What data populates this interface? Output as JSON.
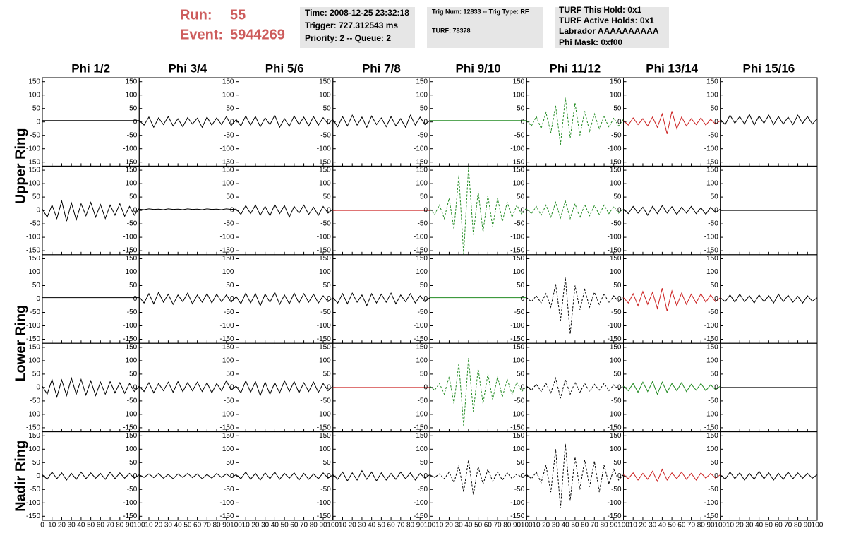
{
  "header": {
    "run_label": "Run:",
    "run": "55",
    "event_label": "Event:",
    "event": "5944269"
  },
  "info_boxes": [
    [
      "Time: 2008-12-25 23:32:18",
      "Trigger: 727.312543 ms",
      "Priority: 2 -- Queue: 2"
    ],
    [
      "Trig Num: 12833 -- Trig Type: RF",
      "TURF: 78378"
    ],
    [
      "TURF This Hold: 0x1",
      "TURF Active Holds: 0x1",
      "Labrador AAAAAAAAAA",
      "Phi Mask: 0xf00"
    ]
  ],
  "chart_data": {
    "type": "line",
    "columns": [
      "Phi 1/2",
      "Phi 3/4",
      "Phi 5/6",
      "Phi 7/8",
      "Phi 9/10",
      "Phi 11/12",
      "Phi 13/14",
      "Phi 15/16"
    ],
    "ring_labels": [
      "Upper Ring",
      "Lower Ring",
      "Nadir Ring"
    ],
    "x": [
      0,
      5,
      10,
      15,
      20,
      25,
      30,
      35,
      40,
      45,
      50,
      55,
      60,
      65,
      70,
      75,
      80,
      85,
      90,
      95,
      100
    ],
    "xlim": [
      0,
      100
    ],
    "xticks": [
      0,
      10,
      20,
      30,
      40,
      50,
      60,
      70,
      80,
      90,
      100
    ],
    "ylim": [
      -165,
      165
    ],
    "yticks": [
      -150,
      -100,
      -50,
      0,
      50,
      100,
      150
    ],
    "panels": [
      [
        {
          "color": "#000000",
          "dashed": false,
          "values": [
            5,
            5,
            5,
            5,
            5,
            5,
            5,
            5,
            5,
            5,
            5,
            5,
            5,
            5,
            5,
            5,
            5,
            5,
            5,
            5,
            5
          ]
        },
        {
          "color": "#000000",
          "dashed": false,
          "values": [
            5,
            -12,
            18,
            -20,
            15,
            -10,
            20,
            -15,
            12,
            -18,
            16,
            -8,
            14,
            -20,
            18,
            -12,
            15,
            -10,
            20,
            -14,
            8
          ]
        },
        {
          "color": "#000000",
          "dashed": false,
          "values": [
            10,
            -15,
            22,
            -12,
            20,
            -18,
            15,
            -10,
            25,
            -20,
            12,
            -16,
            22,
            -10,
            18,
            -15,
            20,
            -12,
            16,
            -8,
            10
          ]
        },
        {
          "color": "#000000",
          "dashed": false,
          "values": [
            8,
            -18,
            20,
            -15,
            25,
            -12,
            18,
            -20,
            22,
            -10,
            15,
            -18,
            20,
            -15,
            12,
            -20,
            25,
            -12,
            18,
            -10,
            5
          ]
        },
        {
          "color": "#228b22",
          "dashed": false,
          "values": [
            5,
            5,
            5,
            5,
            5,
            5,
            5,
            5,
            5,
            5,
            5,
            5,
            5,
            5,
            5,
            5,
            5,
            5,
            5,
            5,
            5
          ]
        },
        {
          "color": "#228b22",
          "dashed": true,
          "values": [
            5,
            -15,
            20,
            -25,
            35,
            -40,
            60,
            -85,
            90,
            -60,
            70,
            -50,
            40,
            -35,
            30,
            -25,
            20,
            -20,
            15,
            -15,
            10
          ]
        },
        {
          "color": "#cc2222",
          "dashed": false,
          "values": [
            5,
            -12,
            15,
            -10,
            12,
            -15,
            18,
            -20,
            30,
            -45,
            40,
            -25,
            18,
            -15,
            12,
            -10,
            15,
            -12,
            10,
            -8,
            5
          ]
        },
        {
          "color": "#000000",
          "dashed": false,
          "values": [
            10,
            -10,
            25,
            -5,
            20,
            -8,
            28,
            -12,
            22,
            -5,
            25,
            -10,
            20,
            -8,
            18,
            -10,
            25,
            -5,
            20,
            -8,
            12
          ]
        }
      ],
      [
        {
          "color": "#000000",
          "dashed": false,
          "values": [
            5,
            -25,
            20,
            -30,
            35,
            -40,
            28,
            -35,
            25,
            -20,
            30,
            -25,
            22,
            -30,
            20,
            -18,
            25,
            -22,
            15,
            -18,
            8
          ]
        },
        {
          "color": "#000000",
          "dashed": false,
          "values": [
            5,
            3,
            6,
            4,
            5,
            3,
            6,
            4,
            5,
            3,
            6,
            4,
            5,
            3,
            6,
            4,
            5,
            3,
            6,
            4,
            5
          ]
        },
        {
          "color": "#000000",
          "dashed": false,
          "values": [
            5,
            -15,
            18,
            -12,
            20,
            -18,
            15,
            -20,
            22,
            -12,
            18,
            -25,
            15,
            -10,
            20,
            -15,
            12,
            -18,
            15,
            -10,
            5
          ]
        },
        {
          "color": "#cc2222",
          "dashed": false,
          "values": [
            0,
            0,
            0,
            0,
            0,
            0,
            0,
            0,
            0,
            0,
            0,
            0,
            0,
            0,
            0,
            0,
            0,
            0,
            0,
            0,
            0
          ]
        },
        {
          "color": "#228b22",
          "dashed": true,
          "values": [
            5,
            -15,
            20,
            -30,
            45,
            -70,
            130,
            -165,
            160,
            -90,
            70,
            -80,
            55,
            -60,
            45,
            -40,
            30,
            -25,
            20,
            -15,
            10
          ]
        },
        {
          "color": "#228b22",
          "dashed": true,
          "values": [
            5,
            -12,
            15,
            -18,
            20,
            -25,
            30,
            -28,
            35,
            -30,
            25,
            -28,
            22,
            -20,
            18,
            -15,
            20,
            -12,
            15,
            -10,
            5
          ]
        },
        {
          "color": "#000000",
          "dashed": false,
          "values": [
            5,
            -12,
            15,
            -10,
            12,
            -18,
            15,
            -12,
            18,
            -10,
            14,
            -15,
            12,
            -10,
            15,
            -12,
            10,
            -15,
            12,
            -8,
            5
          ]
        },
        {
          "color": "#000000",
          "dashed": false,
          "values": [
            0,
            0,
            0,
            0,
            0,
            0,
            0,
            0,
            0,
            0,
            0,
            0,
            0,
            0,
            0,
            0,
            0,
            0,
            0,
            0,
            0
          ]
        }
      ],
      [
        {
          "color": "#000000",
          "dashed": false,
          "values": [
            5,
            5,
            5,
            5,
            5,
            5,
            5,
            5,
            5,
            5,
            5,
            5,
            5,
            5,
            5,
            5,
            5,
            5,
            5,
            5,
            5
          ]
        },
        {
          "color": "#000000",
          "dashed": false,
          "values": [
            8,
            -15,
            20,
            -18,
            25,
            -12,
            18,
            -20,
            15,
            -10,
            22,
            -18,
            15,
            -12,
            20,
            -15,
            18,
            -10,
            15,
            -12,
            8
          ]
        },
        {
          "color": "#000000",
          "dashed": false,
          "values": [
            10,
            -18,
            22,
            -15,
            20,
            -25,
            18,
            -12,
            25,
            -20,
            15,
            -18,
            22,
            -15,
            20,
            -12,
            18,
            -15,
            12,
            -10,
            5
          ]
        },
        {
          "color": "#000000",
          "dashed": false,
          "values": [
            5,
            -15,
            20,
            -18,
            22,
            -12,
            15,
            -25,
            20,
            -15,
            18,
            -12,
            22,
            -18,
            15,
            -10,
            20,
            -15,
            12,
            -10,
            5
          ]
        },
        {
          "color": "#228b22",
          "dashed": false,
          "values": [
            5,
            5,
            5,
            5,
            5,
            5,
            5,
            5,
            5,
            5,
            5,
            5,
            5,
            5,
            5,
            5,
            5,
            5,
            5,
            5,
            5
          ]
        },
        {
          "color": "#000000",
          "dashed": true,
          "values": [
            5,
            -10,
            12,
            -15,
            20,
            -30,
            55,
            -80,
            80,
            -130,
            50,
            -40,
            35,
            -30,
            25,
            -20,
            20,
            -15,
            12,
            -10,
            5
          ]
        },
        {
          "color": "#cc2222",
          "dashed": false,
          "values": [
            5,
            -15,
            20,
            -25,
            28,
            -20,
            25,
            -35,
            40,
            -45,
            30,
            -25,
            22,
            -20,
            18,
            -15,
            20,
            -12,
            15,
            -10,
            5
          ]
        },
        {
          "color": "#000000",
          "dashed": false,
          "values": [
            5,
            -10,
            15,
            -12,
            18,
            -10,
            12,
            -15,
            15,
            -10,
            12,
            -15,
            18,
            -10,
            14,
            -12,
            10,
            -15,
            12,
            -8,
            5
          ]
        }
      ],
      [
        {
          "color": "#000000",
          "dashed": false,
          "values": [
            5,
            -25,
            30,
            -35,
            28,
            -30,
            35,
            -25,
            30,
            -28,
            25,
            -30,
            20,
            -25,
            22,
            -20,
            18,
            -22,
            15,
            -15,
            5
          ]
        },
        {
          "color": "#000000",
          "dashed": false,
          "values": [
            5,
            -15,
            18,
            -20,
            15,
            -12,
            20,
            -18,
            22,
            -15,
            18,
            -12,
            20,
            -15,
            18,
            -20,
            15,
            -12,
            25,
            -10,
            5
          ]
        },
        {
          "color": "#000000",
          "dashed": false,
          "values": [
            5,
            -20,
            25,
            -18,
            22,
            -30,
            20,
            -25,
            18,
            -20,
            25,
            -15,
            22,
            -20,
            18,
            -15,
            20,
            -18,
            15,
            -12,
            5
          ]
        },
        {
          "color": "#cc2222",
          "dashed": false,
          "values": [
            0,
            0,
            0,
            0,
            0,
            0,
            0,
            0,
            0,
            0,
            0,
            0,
            0,
            0,
            0,
            0,
            0,
            0,
            0,
            0,
            0
          ]
        },
        {
          "color": "#228b22",
          "dashed": true,
          "values": [
            5,
            -10,
            15,
            -25,
            40,
            -60,
            90,
            -145,
            110,
            -90,
            70,
            -60,
            50,
            -45,
            40,
            -35,
            30,
            -25,
            20,
            -15,
            5
          ]
        },
        {
          "color": "#000000",
          "dashed": true,
          "values": [
            5,
            -10,
            12,
            -15,
            15,
            -20,
            35,
            -40,
            30,
            -25,
            20,
            -18,
            15,
            -15,
            12,
            -10,
            15,
            -12,
            10,
            -8,
            5
          ]
        },
        {
          "color": "#228b22",
          "dashed": false,
          "values": [
            5,
            -12,
            15,
            -18,
            20,
            -15,
            22,
            -25,
            20,
            -18,
            15,
            -12,
            18,
            -15,
            12,
            -10,
            15,
            -12,
            10,
            -8,
            5
          ]
        },
        {
          "color": "#000000",
          "dashed": false,
          "values": [
            0,
            0,
            0,
            0,
            0,
            0,
            0,
            0,
            0,
            0,
            0,
            0,
            0,
            0,
            0,
            0,
            0,
            0,
            0,
            0,
            0
          ]
        }
      ],
      [
        {
          "color": "#000000",
          "dashed": false,
          "values": [
            5,
            -12,
            15,
            -10,
            12,
            -15,
            10,
            -12,
            15,
            -10,
            12,
            -8,
            10,
            -12,
            15,
            -10,
            12,
            -8,
            10,
            -8,
            5
          ]
        },
        {
          "color": "#000000",
          "dashed": false,
          "values": [
            5,
            -5,
            8,
            -6,
            10,
            -8,
            6,
            -10,
            8,
            -5,
            10,
            -6,
            8,
            -10,
            6,
            -8,
            10,
            -5,
            8,
            -6,
            5
          ]
        },
        {
          "color": "#000000",
          "dashed": false,
          "values": [
            5,
            -10,
            15,
            -12,
            10,
            -15,
            12,
            -10,
            15,
            -12,
            10,
            -8,
            12,
            -15,
            10,
            -12,
            8,
            -10,
            12,
            -8,
            5
          ]
        },
        {
          "color": "#000000",
          "dashed": false,
          "values": [
            5,
            -12,
            15,
            -18,
            12,
            -15,
            20,
            -12,
            15,
            -18,
            12,
            -15,
            10,
            -12,
            15,
            -10,
            12,
            -15,
            10,
            -8,
            5
          ]
        },
        {
          "color": "#000000",
          "dashed": true,
          "values": [
            5,
            -5,
            8,
            -10,
            15,
            -25,
            40,
            -60,
            60,
            -70,
            35,
            -30,
            25,
            -20,
            15,
            -15,
            12,
            -10,
            8,
            -5,
            5
          ]
        },
        {
          "color": "#000000",
          "dashed": true,
          "values": [
            5,
            -10,
            15,
            -25,
            40,
            -60,
            100,
            -120,
            120,
            -90,
            70,
            -50,
            60,
            -40,
            55,
            -60,
            40,
            -30,
            25,
            -15,
            5
          ]
        },
        {
          "color": "#cc2222",
          "dashed": false,
          "values": [
            5,
            -10,
            12,
            -15,
            10,
            -12,
            18,
            -20,
            25,
            -15,
            12,
            -10,
            15,
            -12,
            10,
            -15,
            12,
            -8,
            10,
            -8,
            5
          ]
        },
        {
          "color": "#000000",
          "dashed": false,
          "values": [
            5,
            -12,
            15,
            -10,
            12,
            -15,
            10,
            -12,
            18,
            -10,
            12,
            -15,
            10,
            -12,
            15,
            -10,
            12,
            -8,
            10,
            -8,
            5
          ]
        }
      ]
    ]
  }
}
